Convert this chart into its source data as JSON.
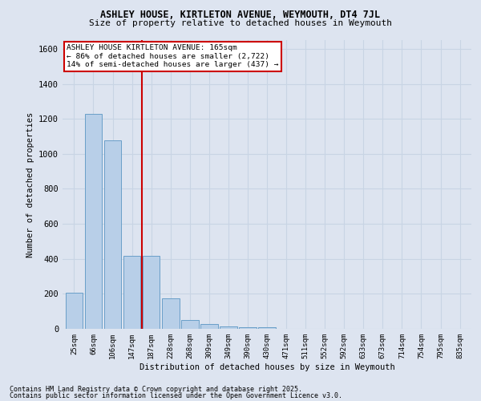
{
  "title1": "ASHLEY HOUSE, KIRTLETON AVENUE, WEYMOUTH, DT4 7JL",
  "title2": "Size of property relative to detached houses in Weymouth",
  "xlabel": "Distribution of detached houses by size in Weymouth",
  "ylabel": "Number of detached properties",
  "categories": [
    "25sqm",
    "66sqm",
    "106sqm",
    "147sqm",
    "187sqm",
    "228sqm",
    "268sqm",
    "309sqm",
    "349sqm",
    "390sqm",
    "430sqm",
    "471sqm",
    "511sqm",
    "552sqm",
    "592sqm",
    "633sqm",
    "673sqm",
    "714sqm",
    "754sqm",
    "795sqm",
    "835sqm"
  ],
  "values": [
    205,
    1230,
    1075,
    415,
    415,
    175,
    50,
    28,
    15,
    8,
    10,
    0,
    0,
    0,
    0,
    0,
    0,
    0,
    0,
    0,
    0
  ],
  "bar_color": "#b8cfe8",
  "bar_edge_color": "#6a9fc8",
  "vline_x": 3.5,
  "vline_color": "#cc0000",
  "annotation_text": "ASHLEY HOUSE KIRTLETON AVENUE: 165sqm\n← 86% of detached houses are smaller (2,722)\n14% of semi-detached houses are larger (437) →",
  "annotation_box_color": "#ffffff",
  "annotation_border_color": "#cc0000",
  "ylim": [
    0,
    1650
  ],
  "yticks": [
    0,
    200,
    400,
    600,
    800,
    1000,
    1200,
    1400,
    1600
  ],
  "grid_color": "#c8d4e4",
  "bg_color": "#dde4f0",
  "footer1": "Contains HM Land Registry data © Crown copyright and database right 2025.",
  "footer2": "Contains public sector information licensed under the Open Government Licence v3.0."
}
